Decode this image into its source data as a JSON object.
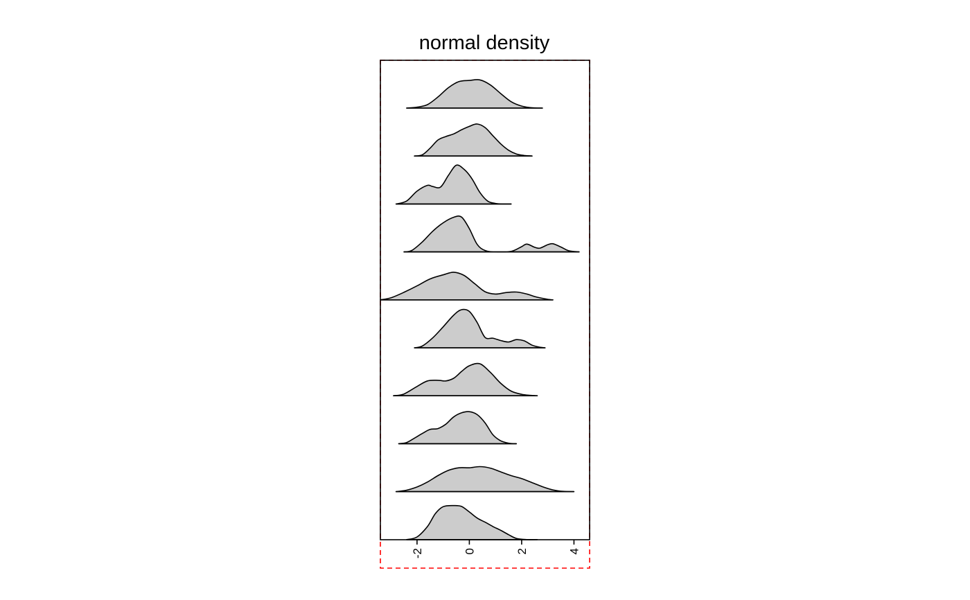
{
  "chart_data": {
    "type": "ridgeline",
    "title": "normal density",
    "xlabel": "",
    "ylabel": "",
    "xlim": [
      -3.4,
      4.6
    ],
    "x_ticks": [
      -2,
      0,
      2,
      4
    ],
    "x_tick_labels": [
      "-2",
      "0",
      "2",
      "4"
    ],
    "grid": false,
    "fill_color": "#cccccc",
    "line_color": "#000000",
    "highlight_color": "#ff0000",
    "series": [
      {
        "range": [
          -2.4,
          2.8
        ],
        "points": [
          [
            -2.4,
            0.0
          ],
          [
            -2.0,
            0.03
          ],
          [
            -1.6,
            0.12
          ],
          [
            -1.2,
            0.38
          ],
          [
            -0.8,
            0.7
          ],
          [
            -0.4,
            0.91
          ],
          [
            0.0,
            0.95
          ],
          [
            0.4,
            0.97
          ],
          [
            0.8,
            0.8
          ],
          [
            1.2,
            0.5
          ],
          [
            1.6,
            0.22
          ],
          [
            2.0,
            0.07
          ],
          [
            2.4,
            0.01
          ],
          [
            2.8,
            0.0
          ]
        ]
      },
      {
        "range": [
          -2.1,
          2.4
        ],
        "points": [
          [
            -2.1,
            0.0
          ],
          [
            -1.8,
            0.04
          ],
          [
            -1.5,
            0.27
          ],
          [
            -1.2,
            0.55
          ],
          [
            -0.9,
            0.67
          ],
          [
            -0.6,
            0.76
          ],
          [
            -0.3,
            0.9
          ],
          [
            0.0,
            1.02
          ],
          [
            0.3,
            1.1
          ],
          [
            0.6,
            0.98
          ],
          [
            0.9,
            0.7
          ],
          [
            1.2,
            0.42
          ],
          [
            1.5,
            0.2
          ],
          [
            1.8,
            0.07
          ],
          [
            2.1,
            0.02
          ],
          [
            2.4,
            0.0
          ]
        ]
      },
      {
        "range": [
          -2.8,
          1.6
        ],
        "points": [
          [
            -2.8,
            0.0
          ],
          [
            -2.4,
            0.1
          ],
          [
            -2.0,
            0.44
          ],
          [
            -1.6,
            0.64
          ],
          [
            -1.4,
            0.6
          ],
          [
            -1.1,
            0.58
          ],
          [
            -0.8,
            0.98
          ],
          [
            -0.5,
            1.33
          ],
          [
            -0.2,
            1.19
          ],
          [
            0.1,
            0.87
          ],
          [
            0.4,
            0.4
          ],
          [
            0.7,
            0.1
          ],
          [
            1.0,
            0.02
          ],
          [
            1.3,
            0.0
          ],
          [
            1.6,
            0.0
          ]
        ]
      },
      {
        "range": [
          -2.5,
          4.2
        ],
        "points": [
          [
            -2.5,
            0.0
          ],
          [
            -2.2,
            0.05
          ],
          [
            -1.8,
            0.34
          ],
          [
            -1.4,
            0.71
          ],
          [
            -1.0,
            1.0
          ],
          [
            -0.6,
            1.19
          ],
          [
            -0.3,
            1.2
          ],
          [
            0.0,
            0.8
          ],
          [
            0.3,
            0.26
          ],
          [
            0.6,
            0.05
          ],
          [
            1.0,
            0.0
          ],
          [
            1.6,
            0.02
          ],
          [
            2.0,
            0.18
          ],
          [
            2.2,
            0.27
          ],
          [
            2.5,
            0.16
          ],
          [
            2.7,
            0.13
          ],
          [
            3.0,
            0.25
          ],
          [
            3.2,
            0.28
          ],
          [
            3.5,
            0.17
          ],
          [
            3.8,
            0.04
          ],
          [
            4.2,
            0.0
          ]
        ]
      },
      {
        "range": [
          -3.4,
          3.2
        ],
        "points": [
          [
            -3.4,
            0.0
          ],
          [
            -3.0,
            0.07
          ],
          [
            -2.5,
            0.26
          ],
          [
            -2.0,
            0.48
          ],
          [
            -1.5,
            0.72
          ],
          [
            -1.0,
            0.86
          ],
          [
            -0.6,
            0.95
          ],
          [
            -0.2,
            0.84
          ],
          [
            0.2,
            0.56
          ],
          [
            0.6,
            0.28
          ],
          [
            1.0,
            0.2
          ],
          [
            1.4,
            0.25
          ],
          [
            1.8,
            0.27
          ],
          [
            2.2,
            0.2
          ],
          [
            2.6,
            0.09
          ],
          [
            3.0,
            0.02
          ],
          [
            3.2,
            0.0
          ]
        ]
      },
      {
        "range": [
          -2.1,
          2.9
        ],
        "points": [
          [
            -2.1,
            0.0
          ],
          [
            -1.8,
            0.06
          ],
          [
            -1.4,
            0.34
          ],
          [
            -1.0,
            0.72
          ],
          [
            -0.6,
            1.12
          ],
          [
            -0.3,
            1.31
          ],
          [
            0.0,
            1.25
          ],
          [
            0.3,
            0.87
          ],
          [
            0.6,
            0.36
          ],
          [
            0.9,
            0.33
          ],
          [
            1.2,
            0.25
          ],
          [
            1.5,
            0.2
          ],
          [
            1.8,
            0.28
          ],
          [
            2.1,
            0.24
          ],
          [
            2.4,
            0.09
          ],
          [
            2.7,
            0.02
          ],
          [
            2.9,
            0.0
          ]
        ]
      },
      {
        "range": [
          -2.9,
          2.6
        ],
        "points": [
          [
            -2.9,
            0.0
          ],
          [
            -2.5,
            0.06
          ],
          [
            -2.0,
            0.32
          ],
          [
            -1.6,
            0.51
          ],
          [
            -1.2,
            0.53
          ],
          [
            -0.9,
            0.51
          ],
          [
            -0.6,
            0.6
          ],
          [
            -0.3,
            0.83
          ],
          [
            0.0,
            1.03
          ],
          [
            0.4,
            1.1
          ],
          [
            0.8,
            0.81
          ],
          [
            1.2,
            0.43
          ],
          [
            1.6,
            0.16
          ],
          [
            2.0,
            0.05
          ],
          [
            2.4,
            0.01
          ],
          [
            2.6,
            0.0
          ]
        ]
      },
      {
        "range": [
          -2.7,
          1.8
        ],
        "points": [
          [
            -2.7,
            0.0
          ],
          [
            -2.4,
            0.04
          ],
          [
            -2.1,
            0.19
          ],
          [
            -1.8,
            0.35
          ],
          [
            -1.5,
            0.49
          ],
          [
            -1.2,
            0.52
          ],
          [
            -0.9,
            0.67
          ],
          [
            -0.6,
            0.92
          ],
          [
            -0.3,
            1.06
          ],
          [
            0.0,
            1.1
          ],
          [
            0.3,
            1.0
          ],
          [
            0.6,
            0.72
          ],
          [
            0.9,
            0.31
          ],
          [
            1.2,
            0.1
          ],
          [
            1.5,
            0.02
          ],
          [
            1.8,
            0.0
          ]
        ]
      },
      {
        "range": [
          -2.8,
          4.0
        ],
        "points": [
          [
            -2.8,
            0.0
          ],
          [
            -2.4,
            0.05
          ],
          [
            -2.0,
            0.16
          ],
          [
            -1.6,
            0.33
          ],
          [
            -1.2,
            0.55
          ],
          [
            -0.8,
            0.73
          ],
          [
            -0.4,
            0.82
          ],
          [
            0.0,
            0.82
          ],
          [
            0.4,
            0.86
          ],
          [
            0.8,
            0.81
          ],
          [
            1.2,
            0.68
          ],
          [
            1.6,
            0.55
          ],
          [
            2.0,
            0.45
          ],
          [
            2.4,
            0.31
          ],
          [
            2.8,
            0.17
          ],
          [
            3.2,
            0.06
          ],
          [
            3.6,
            0.01
          ],
          [
            4.0,
            0.0
          ]
        ]
      },
      {
        "range": [
          -2.4,
          2.6
        ],
        "points": [
          [
            -2.4,
            0.0
          ],
          [
            -2.0,
            0.09
          ],
          [
            -1.6,
            0.45
          ],
          [
            -1.3,
            0.89
          ],
          [
            -1.0,
            1.13
          ],
          [
            -0.6,
            1.17
          ],
          [
            -0.3,
            1.14
          ],
          [
            0.0,
            0.95
          ],
          [
            0.3,
            0.74
          ],
          [
            0.6,
            0.6
          ],
          [
            0.9,
            0.45
          ],
          [
            1.2,
            0.32
          ],
          [
            1.5,
            0.17
          ],
          [
            1.8,
            0.04
          ],
          [
            2.2,
            0.0
          ],
          [
            2.6,
            0.0
          ]
        ]
      }
    ]
  }
}
